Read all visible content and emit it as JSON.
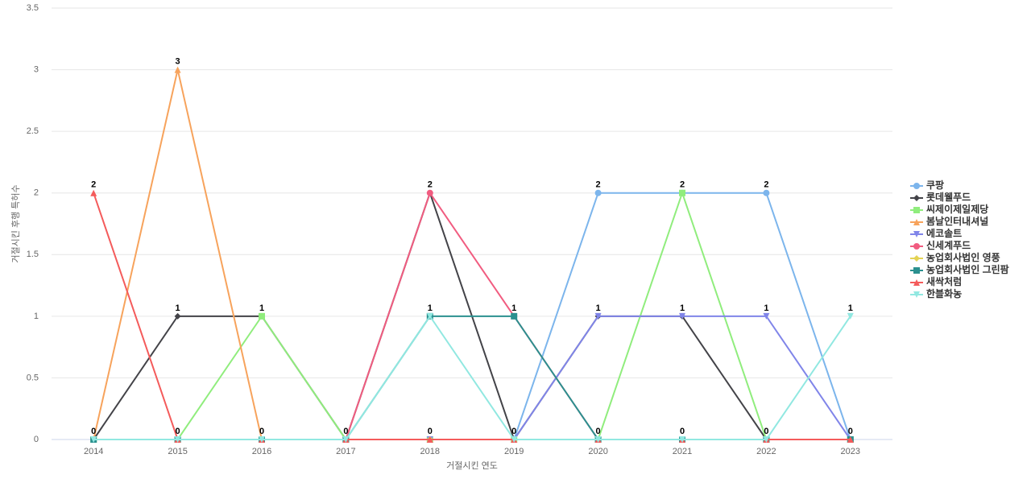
{
  "chart_data": {
    "type": "line",
    "x_label": "거절시킨 연도",
    "y_label": "거절시킨 후행 특허수",
    "categories": [
      "2014",
      "2015",
      "2016",
      "2017",
      "2018",
      "2019",
      "2020",
      "2021",
      "2022",
      "2023"
    ],
    "series": [
      {
        "name": "쿠팡",
        "color": "#7cb5ec",
        "values": [
          0,
          0,
          0,
          0,
          0,
          0,
          2,
          2,
          2,
          0
        ]
      },
      {
        "name": "롯데웰푸드",
        "color": "#434348",
        "values": [
          0,
          1,
          1,
          0,
          2,
          0,
          1,
          1,
          0,
          0
        ]
      },
      {
        "name": "씨제이제일제당",
        "color": "#90ed7d",
        "values": [
          0,
          0,
          1,
          0,
          0,
          0,
          0,
          2,
          0,
          0
        ]
      },
      {
        "name": "봄날인터내셔널",
        "color": "#f7a35c",
        "values": [
          0,
          3,
          0,
          0,
          0,
          0,
          0,
          0,
          0,
          0
        ]
      },
      {
        "name": "에코솔트",
        "color": "#8085e9",
        "values": [
          0,
          0,
          0,
          0,
          0,
          0,
          1,
          1,
          1,
          0
        ]
      },
      {
        "name": "신세계푸드",
        "color": "#f15c80",
        "values": [
          0,
          0,
          0,
          0,
          2,
          1,
          0,
          0,
          0,
          0
        ]
      },
      {
        "name": "농업회사법인 영풍",
        "color": "#e4d354",
        "values": [
          0,
          0,
          0,
          0,
          0,
          0,
          0,
          0,
          0,
          0
        ]
      },
      {
        "name": "농업회사법인 그린팜",
        "color": "#2b908f",
        "values": [
          0,
          0,
          0,
          0,
          1,
          1,
          0,
          0,
          0,
          0
        ]
      },
      {
        "name": "새싹처럼",
        "color": "#f45b5b",
        "values": [
          2,
          0,
          0,
          0,
          0,
          0,
          0,
          0,
          0,
          0
        ]
      },
      {
        "name": "한블화농",
        "color": "#91e8e1",
        "values": [
          0,
          0,
          0,
          0,
          1,
          0,
          0,
          0,
          0,
          1
        ]
      }
    ],
    "ylim": [
      0,
      3.5
    ],
    "yticks": [
      0,
      0.5,
      1,
      1.5,
      2,
      2.5,
      3,
      3.5
    ],
    "grid": true,
    "legend": "right"
  }
}
